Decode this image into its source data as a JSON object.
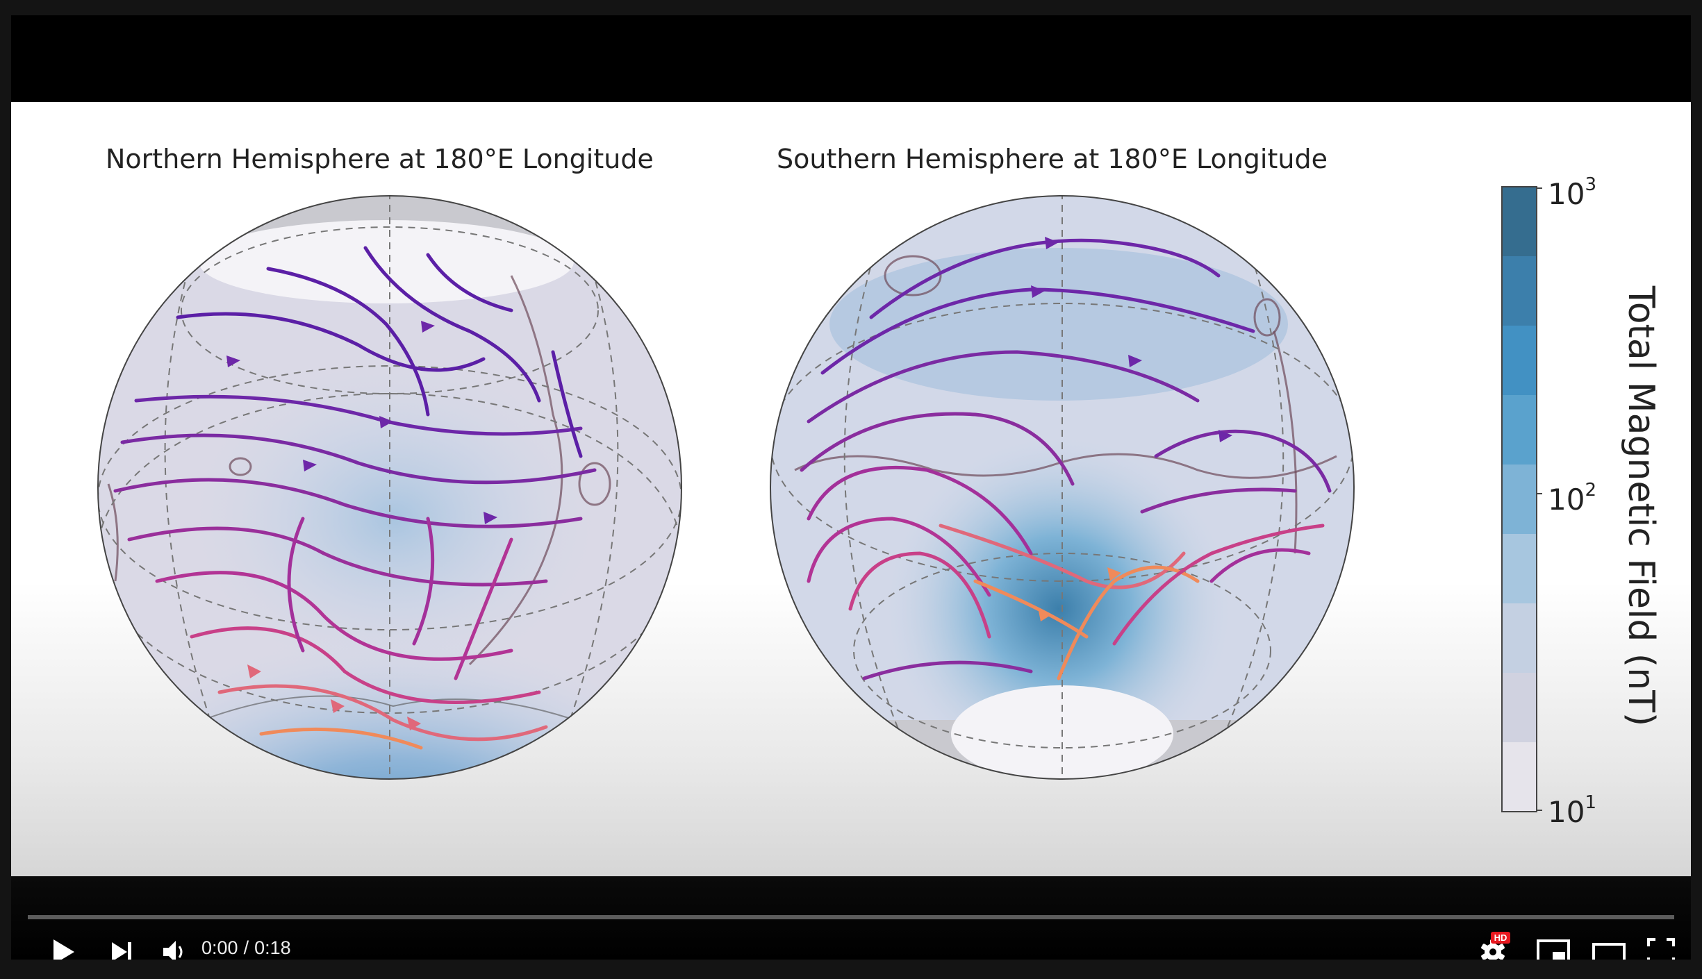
{
  "video": {
    "panels": {
      "north_title": "Northern Hemisphere at 180°E Longitude",
      "south_title": "Southern Hemisphere at 180°E Longitude"
    },
    "colorbar": {
      "label": "Total Magnetic Field (nT)",
      "ticks": [
        "10",
        "10",
        "10"
      ],
      "exponents": [
        "3",
        "2",
        "1"
      ],
      "scale": "log",
      "range_nT": [
        10,
        1000
      ],
      "colors": [
        "#356d8f",
        "#3c7fab",
        "#4291c3",
        "#5aa2cd",
        "#7eb3d6",
        "#a7c6df",
        "#c4d0e2",
        "#d0d2e0",
        "#dcdbe4",
        "#e6e4eb"
      ]
    },
    "streamline_colors": [
      "#5b1fa6",
      "#7a2a9e",
      "#a3309a",
      "#c8408a",
      "#e0697b",
      "#f08a5a"
    ]
  },
  "controls": {
    "current_time": "0:00",
    "separator": "/",
    "duration": "0:18",
    "progress_fraction": 0.0,
    "hd_badge": "HD",
    "icons": {
      "play": "play-icon",
      "next": "next-icon",
      "volume": "volume-icon",
      "settings": "settings-gear-icon",
      "miniplayer": "miniplayer-icon",
      "theater": "theater-mode-icon",
      "fullscreen": "fullscreen-icon"
    }
  }
}
